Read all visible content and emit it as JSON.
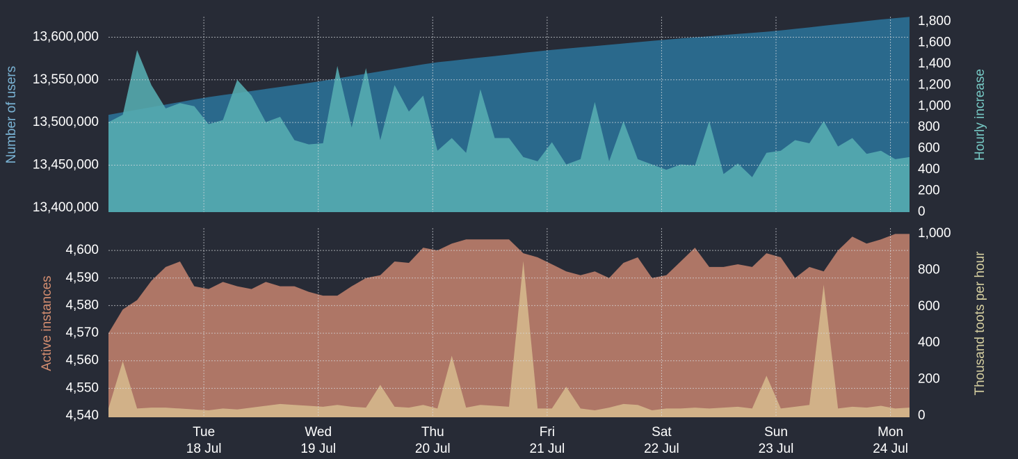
{
  "chart_data": [
    {
      "type": "area",
      "x": [
        0,
        3,
        6,
        9,
        12,
        15,
        18,
        21,
        24,
        27,
        30,
        33,
        36,
        39,
        42,
        45,
        48,
        51,
        54,
        57,
        60,
        63,
        66,
        69,
        72,
        75,
        78,
        81,
        84,
        87,
        90,
        93,
        96,
        99,
        102,
        105,
        108,
        111,
        114,
        117,
        120,
        123,
        126,
        129,
        132,
        135,
        138,
        141,
        144,
        147,
        150,
        153,
        156,
        159,
        162,
        165,
        168
      ],
      "xlim": [
        0,
        168
      ],
      "ylabel": "Number of users",
      "y2label": "Hourly increase",
      "ylim": [
        13395000,
        13624000
      ],
      "yticks": [
        {
          "value": 13400000,
          "label": "13,400,000"
        },
        {
          "value": 13450000,
          "label": "13,450,000"
        },
        {
          "value": 13500000,
          "label": "13,500,000"
        },
        {
          "value": 13550000,
          "label": "13,550,000"
        },
        {
          "value": 13600000,
          "label": "13,600,000"
        }
      ],
      "y2lim": [
        0,
        1846
      ],
      "y2ticks": [
        0,
        200,
        400,
        600,
        800,
        {
          "value": 1000,
          "label": "1,000"
        },
        {
          "value": 1200,
          "label": "1,200"
        },
        {
          "value": 1400,
          "label": "1,400"
        },
        {
          "value": 1600,
          "label": "1,600"
        },
        {
          "value": 1800,
          "label": "1,800"
        }
      ],
      "grid": true,
      "series": [
        {
          "name": "Number of users",
          "color": "#2a698c",
          "axis": "y",
          "values": [
            13509000,
            13512000,
            13515000,
            13518000,
            13521000,
            13524000,
            13527000,
            13529800,
            13532200,
            13534500,
            13536900,
            13539300,
            13541700,
            13544000,
            13546400,
            13548900,
            13551700,
            13554400,
            13557200,
            13559900,
            13562700,
            13565400,
            13568200,
            13570600,
            13572400,
            13574300,
            13576100,
            13577900,
            13579700,
            13581600,
            13583400,
            13585100,
            13586600,
            13588100,
            13589600,
            13591100,
            13592600,
            13594200,
            13595700,
            13597100,
            13598500,
            13599800,
            13601100,
            13602500,
            13603800,
            13605100,
            13606400,
            13607900,
            13609700,
            13611500,
            13613400,
            13615200,
            13617000,
            13618900,
            13620700,
            13622300,
            13623800
          ]
        },
        {
          "name": "Hourly increase",
          "color": "#56adb2",
          "axis": "y2",
          "values": [
            850,
            920,
            1530,
            1200,
            980,
            1030,
            1000,
            830,
            870,
            1250,
            1100,
            850,
            900,
            680,
            640,
            650,
            1380,
            800,
            1360,
            680,
            1200,
            950,
            1100,
            580,
            700,
            560,
            1160,
            700,
            700,
            520,
            480,
            660,
            450,
            500,
            1040,
            480,
            860,
            500,
            450,
            400,
            450,
            440,
            860,
            360,
            460,
            330,
            560,
            580,
            680,
            650,
            860,
            620,
            700,
            550,
            580,
            500,
            520
          ]
        }
      ]
    },
    {
      "type": "area",
      "x": [
        0,
        3,
        6,
        9,
        12,
        15,
        18,
        21,
        24,
        27,
        30,
        33,
        36,
        39,
        42,
        45,
        48,
        51,
        54,
        57,
        60,
        63,
        66,
        69,
        72,
        75,
        78,
        81,
        84,
        87,
        90,
        93,
        96,
        99,
        102,
        105,
        108,
        111,
        114,
        117,
        120,
        123,
        126,
        129,
        132,
        135,
        138,
        141,
        144,
        147,
        150,
        153,
        156,
        159,
        162,
        165,
        168
      ],
      "xlim": [
        0,
        168
      ],
      "xticks": [
        {
          "value": 20,
          "label": "Tue",
          "sublabel": "18 Jul"
        },
        {
          "value": 44,
          "label": "Wed",
          "sublabel": "19 Jul"
        },
        {
          "value": 68,
          "label": "Thu",
          "sublabel": "20 Jul"
        },
        {
          "value": 92,
          "label": "Fri",
          "sublabel": "21 Jul"
        },
        {
          "value": 116,
          "label": "Sat",
          "sublabel": "22 Jul"
        },
        {
          "value": 140,
          "label": "Sun",
          "sublabel": "23 Jul"
        },
        {
          "value": 164,
          "label": "Mon",
          "sublabel": "24 Jul"
        }
      ],
      "ylabel": "Active instances",
      "y2label": "Thousand toots per hour",
      "ylim": [
        4539.5,
        4608.1
      ],
      "yticks": [
        {
          "value": 4540,
          "label": "4,540"
        },
        {
          "value": 4550,
          "label": "4,550"
        },
        {
          "value": 4560,
          "label": "4,560"
        },
        {
          "value": 4570,
          "label": "4,570"
        },
        {
          "value": 4580,
          "label": "4,580"
        },
        {
          "value": 4590,
          "label": "4,590"
        },
        {
          "value": 4600,
          "label": "4,600"
        }
      ],
      "y2lim": [
        -8,
        1031
      ],
      "y2ticks": [
        0,
        200,
        400,
        600,
        800,
        {
          "value": 1000,
          "label": "1,000"
        }
      ],
      "grid": true,
      "series": [
        {
          "name": "Active instances",
          "color": "#ae7666",
          "axis": "y",
          "values": [
            4570,
            4578.6,
            4582,
            4589,
            4594,
            4596,
            4587,
            4586,
            4588.6,
            4587,
            4586,
            4588.6,
            4587,
            4587,
            4585,
            4583.6,
            4583.6,
            4587,
            4590,
            4591,
            4596,
            4595.5,
            4601,
            4600,
            4602.5,
            4604,
            4604,
            4604,
            4604,
            4599,
            4597.5,
            4595,
            4592.4,
            4591,
            4592.4,
            4590,
            4595.5,
            4597.5,
            4590,
            4591,
            4596,
            4601,
            4594,
            4594,
            4595,
            4594,
            4599,
            4597.5,
            4590,
            4594,
            4592.4,
            4600,
            4605,
            4602.5,
            4604,
            4606,
            4606
          ]
        },
        {
          "name": "Thousand toots per hour",
          "color": "#d6b98d",
          "axis": "y2",
          "values": [
            40,
            300,
            40,
            45,
            45,
            40,
            35,
            30,
            40,
            35,
            45,
            55,
            65,
            60,
            55,
            50,
            60,
            50,
            45,
            170,
            50,
            45,
            60,
            40,
            330,
            45,
            60,
            55,
            50,
            850,
            40,
            40,
            160,
            40,
            30,
            45,
            65,
            60,
            30,
            40,
            40,
            45,
            40,
            45,
            50,
            40,
            220,
            40,
            50,
            60,
            720,
            40,
            50,
            45,
            55,
            40,
            45
          ]
        }
      ]
    }
  ]
}
